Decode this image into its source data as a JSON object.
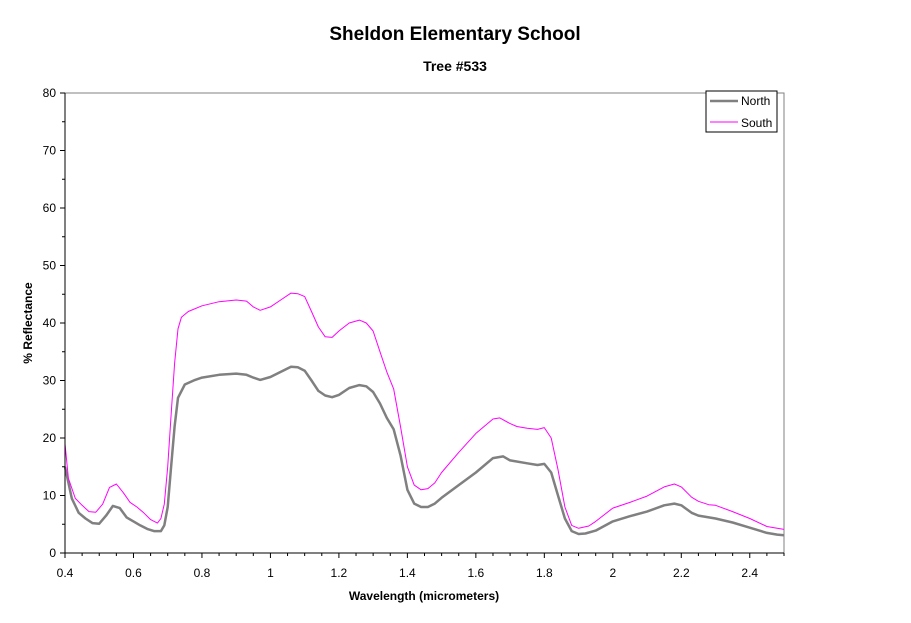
{
  "chart_data": {
    "type": "line",
    "title": "Sheldon Elementary School",
    "subtitle": "Tree #533",
    "xlabel": "Wavelength (micrometers)",
    "ylabel": "% Reflectance",
    "xlim": [
      0.4,
      2.5
    ],
    "ylim": [
      0,
      80
    ],
    "x_ticks": [
      "0.4",
      "0.6",
      "0.8",
      "1",
      "1.2",
      "1.4",
      "1.6",
      "1.8",
      "2",
      "2.2",
      "2.4"
    ],
    "y_ticks": [
      "0",
      "10",
      "20",
      "30",
      "40",
      "50",
      "60",
      "70",
      "80"
    ],
    "grid": false,
    "legend": "top-right",
    "series": [
      {
        "name": "North",
        "color": "#808080",
        "points": [
          [
            0.4,
            15
          ],
          [
            0.42,
            9.5
          ],
          [
            0.44,
            7
          ],
          [
            0.46,
            6
          ],
          [
            0.48,
            5.2
          ],
          [
            0.5,
            5.1
          ],
          [
            0.52,
            6.5
          ],
          [
            0.54,
            8.2
          ],
          [
            0.56,
            7.8
          ],
          [
            0.58,
            6.2
          ],
          [
            0.6,
            5.5
          ],
          [
            0.62,
            4.8
          ],
          [
            0.64,
            4.2
          ],
          [
            0.66,
            3.8
          ],
          [
            0.68,
            3.8
          ],
          [
            0.69,
            4.8
          ],
          [
            0.7,
            8
          ],
          [
            0.71,
            15
          ],
          [
            0.72,
            22
          ],
          [
            0.73,
            27
          ],
          [
            0.75,
            29.3
          ],
          [
            0.78,
            30.1
          ],
          [
            0.8,
            30.5
          ],
          [
            0.85,
            31
          ],
          [
            0.9,
            31.2
          ],
          [
            0.93,
            31
          ],
          [
            0.95,
            30.5
          ],
          [
            0.97,
            30.1
          ],
          [
            1.0,
            30.6
          ],
          [
            1.03,
            31.5
          ],
          [
            1.06,
            32.4
          ],
          [
            1.08,
            32.3
          ],
          [
            1.1,
            31.7
          ],
          [
            1.12,
            30
          ],
          [
            1.14,
            28.2
          ],
          [
            1.16,
            27.4
          ],
          [
            1.18,
            27.1
          ],
          [
            1.2,
            27.5
          ],
          [
            1.23,
            28.7
          ],
          [
            1.26,
            29.2
          ],
          [
            1.28,
            29
          ],
          [
            1.3,
            28
          ],
          [
            1.32,
            26
          ],
          [
            1.34,
            23.5
          ],
          [
            1.36,
            21.5
          ],
          [
            1.38,
            17
          ],
          [
            1.4,
            11
          ],
          [
            1.42,
            8.6
          ],
          [
            1.44,
            8
          ],
          [
            1.46,
            8
          ],
          [
            1.48,
            8.6
          ],
          [
            1.5,
            9.6
          ],
          [
            1.55,
            11.8
          ],
          [
            1.6,
            14
          ],
          [
            1.65,
            16.5
          ],
          [
            1.68,
            16.8
          ],
          [
            1.7,
            16.1
          ],
          [
            1.75,
            15.6
          ],
          [
            1.78,
            15.3
          ],
          [
            1.8,
            15.5
          ],
          [
            1.82,
            14
          ],
          [
            1.84,
            10
          ],
          [
            1.86,
            6
          ],
          [
            1.88,
            3.8
          ],
          [
            1.9,
            3.3
          ],
          [
            1.92,
            3.4
          ],
          [
            1.95,
            3.9
          ],
          [
            2.0,
            5.5
          ],
          [
            2.05,
            6.4
          ],
          [
            2.1,
            7.2
          ],
          [
            2.15,
            8.3
          ],
          [
            2.18,
            8.6
          ],
          [
            2.2,
            8.3
          ],
          [
            2.23,
            7
          ],
          [
            2.25,
            6.5
          ],
          [
            2.3,
            6
          ],
          [
            2.35,
            5.3
          ],
          [
            2.4,
            4.4
          ],
          [
            2.45,
            3.5
          ],
          [
            2.48,
            3.2
          ],
          [
            2.5,
            3.1
          ]
        ]
      },
      {
        "name": "South",
        "color": "#ff00ff",
        "points": [
          [
            0.4,
            19
          ],
          [
            0.41,
            13
          ],
          [
            0.43,
            9.5
          ],
          [
            0.45,
            8.3
          ],
          [
            0.47,
            7.2
          ],
          [
            0.49,
            7.1
          ],
          [
            0.51,
            8.5
          ],
          [
            0.53,
            11.4
          ],
          [
            0.55,
            12
          ],
          [
            0.57,
            10.5
          ],
          [
            0.59,
            8.8
          ],
          [
            0.61,
            8
          ],
          [
            0.63,
            7
          ],
          [
            0.65,
            5.8
          ],
          [
            0.67,
            5.2
          ],
          [
            0.68,
            6
          ],
          [
            0.69,
            8.5
          ],
          [
            0.7,
            15
          ],
          [
            0.71,
            24
          ],
          [
            0.72,
            33
          ],
          [
            0.73,
            39
          ],
          [
            0.74,
            41
          ],
          [
            0.76,
            42
          ],
          [
            0.8,
            43
          ],
          [
            0.85,
            43.7
          ],
          [
            0.9,
            44
          ],
          [
            0.93,
            43.8
          ],
          [
            0.95,
            42.8
          ],
          [
            0.97,
            42.2
          ],
          [
            1.0,
            42.8
          ],
          [
            1.03,
            44
          ],
          [
            1.06,
            45.2
          ],
          [
            1.08,
            45.1
          ],
          [
            1.1,
            44.6
          ],
          [
            1.12,
            42
          ],
          [
            1.14,
            39.3
          ],
          [
            1.16,
            37.6
          ],
          [
            1.18,
            37.5
          ],
          [
            1.2,
            38.6
          ],
          [
            1.23,
            40
          ],
          [
            1.26,
            40.5
          ],
          [
            1.28,
            40
          ],
          [
            1.3,
            38.6
          ],
          [
            1.32,
            35
          ],
          [
            1.34,
            31.5
          ],
          [
            1.36,
            28.5
          ],
          [
            1.38,
            22
          ],
          [
            1.4,
            15
          ],
          [
            1.42,
            11.8
          ],
          [
            1.44,
            11
          ],
          [
            1.46,
            11.2
          ],
          [
            1.48,
            12.2
          ],
          [
            1.5,
            14
          ],
          [
            1.55,
            17.5
          ],
          [
            1.6,
            20.8
          ],
          [
            1.65,
            23.3
          ],
          [
            1.67,
            23.5
          ],
          [
            1.7,
            22.5
          ],
          [
            1.72,
            22
          ],
          [
            1.75,
            21.7
          ],
          [
            1.78,
            21.5
          ],
          [
            1.8,
            21.8
          ],
          [
            1.82,
            20
          ],
          [
            1.84,
            14.5
          ],
          [
            1.86,
            8
          ],
          [
            1.88,
            4.8
          ],
          [
            1.9,
            4.3
          ],
          [
            1.93,
            4.7
          ],
          [
            1.95,
            5.5
          ],
          [
            2.0,
            7.8
          ],
          [
            2.05,
            8.8
          ],
          [
            2.1,
            9.9
          ],
          [
            2.15,
            11.5
          ],
          [
            2.18,
            12
          ],
          [
            2.2,
            11.5
          ],
          [
            2.23,
            9.7
          ],
          [
            2.25,
            9
          ],
          [
            2.28,
            8.4
          ],
          [
            2.3,
            8.3
          ],
          [
            2.35,
            7.2
          ],
          [
            2.4,
            6
          ],
          [
            2.45,
            4.6
          ],
          [
            2.48,
            4.3
          ],
          [
            2.5,
            4.1
          ]
        ]
      }
    ]
  }
}
